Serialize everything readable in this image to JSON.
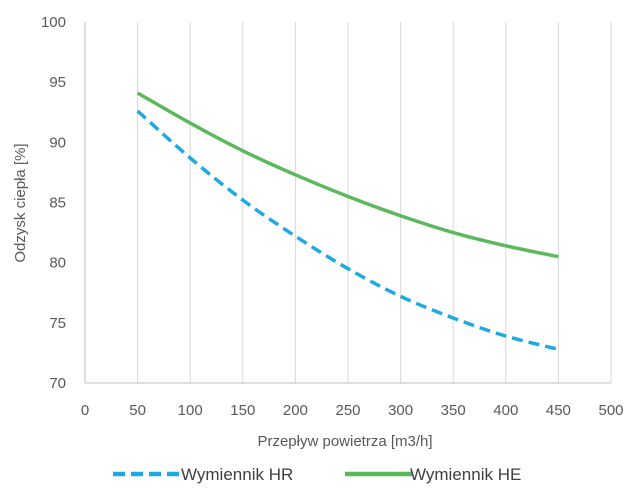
{
  "chart_data": {
    "type": "line",
    "xlabel": "Przepływ powietrza [m3/h]",
    "ylabel": "Odzysk ciepła  [%]",
    "xlim": [
      0,
      500
    ],
    "ylim": [
      70,
      100
    ],
    "xticks": [
      0,
      50,
      100,
      150,
      200,
      250,
      300,
      350,
      400,
      450,
      500
    ],
    "yticks": [
      70,
      75,
      80,
      85,
      90,
      95,
      100
    ],
    "grid": "vertical",
    "legend": "bottom",
    "x": [
      50,
      100,
      150,
      200,
      250,
      300,
      350,
      400,
      450
    ],
    "series": [
      {
        "name": "Wymiennik HR",
        "color": "#1FA9E1",
        "style": "dashed",
        "values": [
          92.6,
          88.7,
          85.2,
          82.2,
          79.5,
          77.2,
          75.4,
          73.9,
          72.8
        ]
      },
      {
        "name": "Wymiennik HE",
        "color": "#5CB85C",
        "style": "solid",
        "values": [
          94.1,
          91.6,
          89.3,
          87.3,
          85.5,
          83.9,
          82.5,
          81.4,
          80.5
        ]
      }
    ]
  }
}
